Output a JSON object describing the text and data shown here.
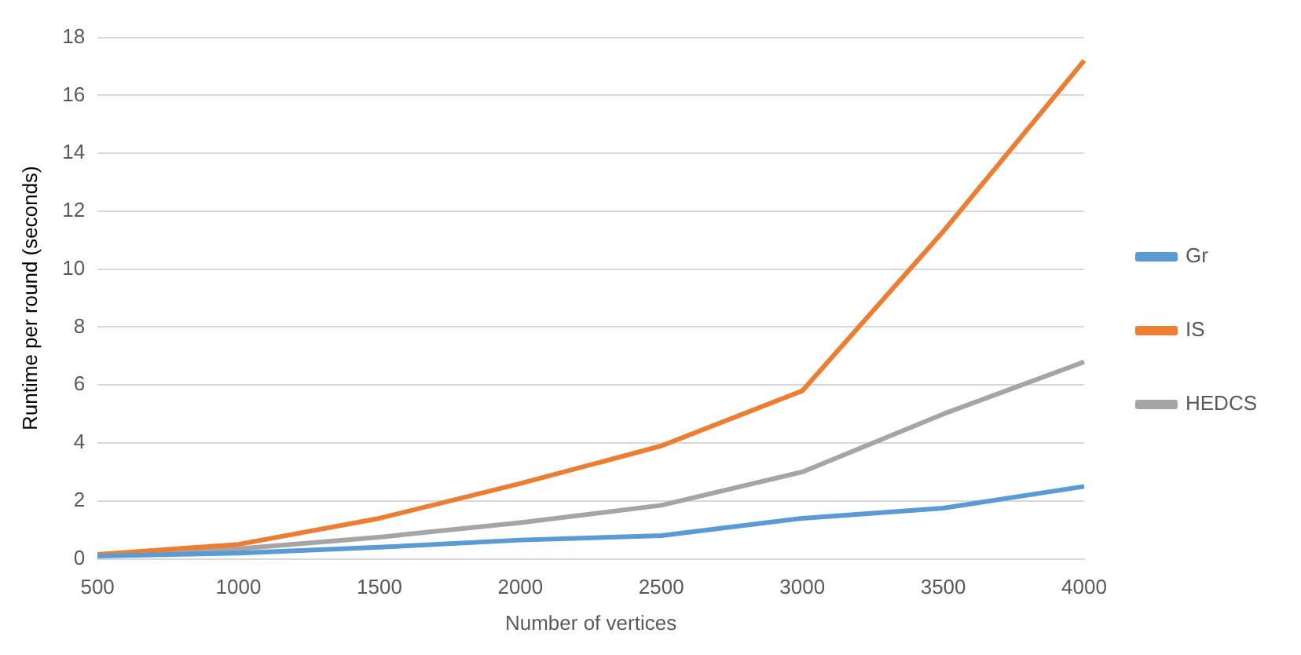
{
  "chart_data": {
    "type": "line",
    "xlabel": "Number of vertices",
    "ylabel": "Runtime per round (seconds)",
    "categories": [
      "500",
      "1000",
      "1500",
      "2000",
      "2500",
      "3000",
      "3500",
      "4000"
    ],
    "series": [
      {
        "name": "Gr",
        "color": "#5b9bd5",
        "values": [
          0.1,
          0.2,
          0.4,
          0.65,
          0.8,
          1.4,
          1.75,
          2.5
        ]
      },
      {
        "name": "IS",
        "color": "#ed7d31",
        "values": [
          0.15,
          0.5,
          1.4,
          2.6,
          3.9,
          5.8,
          11.3,
          17.2
        ]
      },
      {
        "name": "HEDCS",
        "color": "#a5a5a5",
        "values": [
          0.1,
          0.35,
          0.75,
          1.25,
          1.85,
          3.0,
          5.0,
          6.8
        ]
      }
    ],
    "ylim": [
      0,
      18
    ],
    "yticks": [
      0,
      2,
      4,
      6,
      8,
      10,
      12,
      14,
      16,
      18
    ],
    "grid": "y",
    "legend": "right",
    "marker": "none",
    "line_style": "solid"
  }
}
